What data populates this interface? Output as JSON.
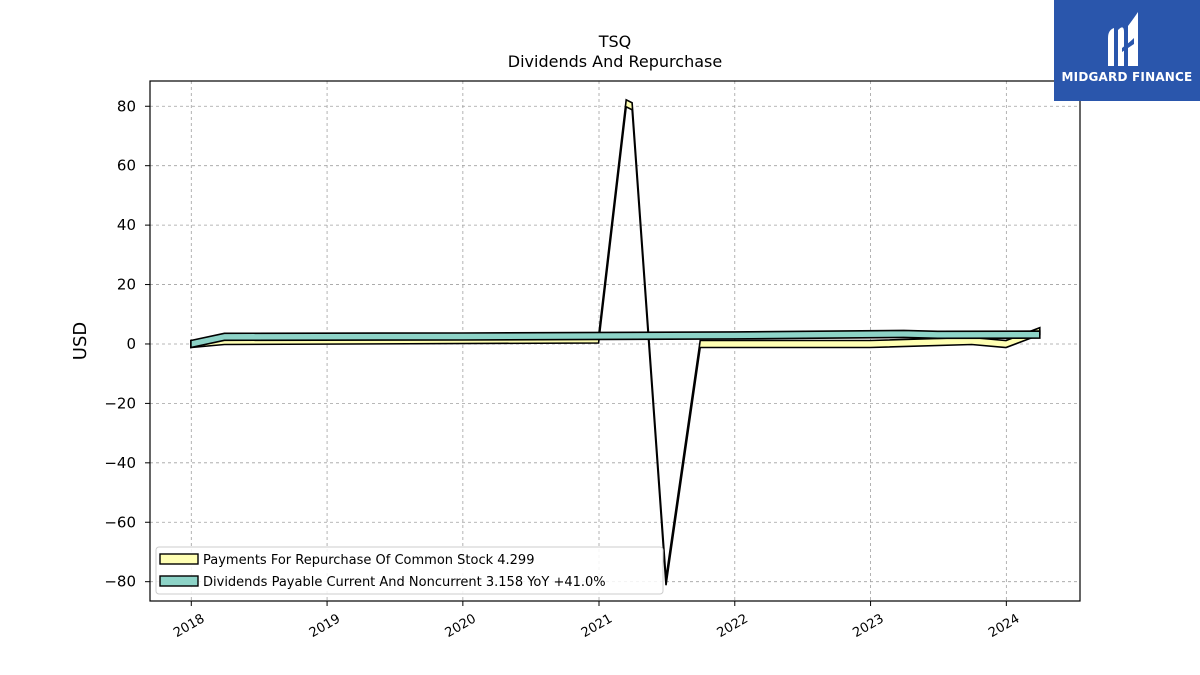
{
  "logo": {
    "text": "MIDGARD FINANCE",
    "icon": "midgard-logo-icon",
    "bg_color": "#2a56ac"
  },
  "chart_data": {
    "type": "area",
    "title": "TSQ",
    "subtitle": "Dividends And Repurchase",
    "xlabel": "",
    "ylabel": "USD",
    "xlim": [
      "2017-09-12",
      "2024-07-17"
    ],
    "ylim": [
      -86.5,
      88.5
    ],
    "x_ticks": [
      "2018",
      "2019",
      "2020",
      "2021",
      "2022",
      "2023",
      "2024"
    ],
    "y_ticks": [
      80,
      60,
      40,
      20,
      0,
      -20,
      -40,
      -60,
      -80
    ],
    "y_tick_labels": [
      "80",
      "60",
      "40",
      "20",
      "0",
      "−20",
      "−40",
      "−60",
      "−80"
    ],
    "grid": true,
    "legend_position": "lower-left",
    "series": [
      {
        "name": "Payments For Repurchase Of Common Stock",
        "legend_label": "Payments For Repurchase Of Common Stock  4.299",
        "color": "#ffffb3",
        "x": [
          "2017-12-31",
          "2018-03-31",
          "2020-12-31",
          "2021-03-15",
          "2021-03-31",
          "2021-06-30",
          "2021-09-30",
          "2022-12-31",
          "2023-09-30",
          "2023-12-31",
          "2024-03-31"
        ],
        "y": [
          0,
          1.0,
          1.5,
          81,
          80,
          -80,
          0,
          0,
          1,
          0,
          4.3
        ]
      },
      {
        "name": "Dividends Payable Current And Noncurrent",
        "legend_label": "Dividends Payable Current And Noncurrent  3.158 YoY +41.0%",
        "color": "#8dd3c7",
        "x": [
          "2017-12-31",
          "2018-03-31",
          "2019-12-31",
          "2021-12-31",
          "2023-03-31",
          "2023-06-30",
          "2024-03-31"
        ],
        "y": [
          0,
          2.4,
          2.5,
          2.9,
          3.4,
          3.1,
          3.16
        ]
      }
    ]
  }
}
